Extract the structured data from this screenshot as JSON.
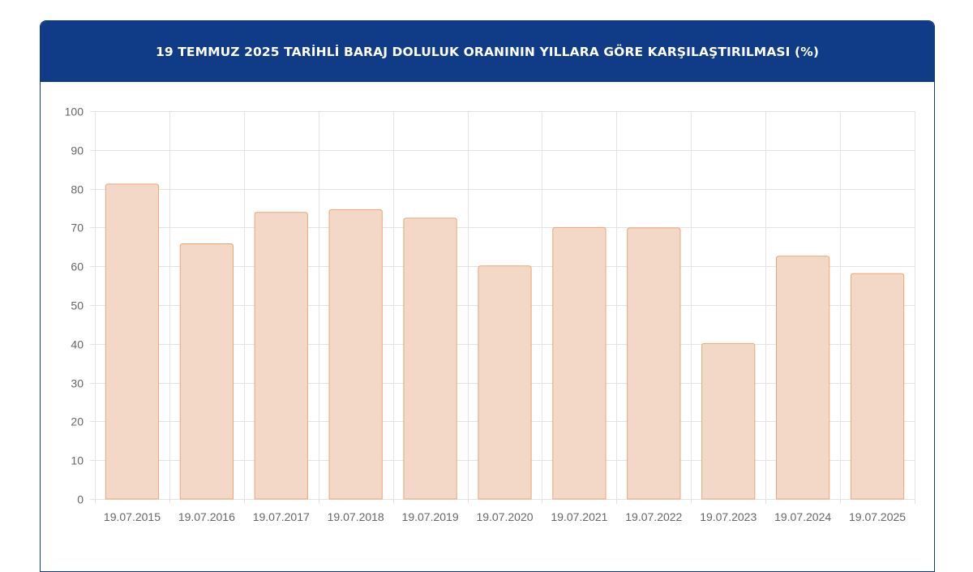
{
  "header": {
    "title": "19 TEMMUZ 2025 TARİHLİ BARAJ DOLULUK ORANININ YILLARA GÖRE KARŞILAŞTIRILMASI (%)"
  },
  "chart_data": {
    "type": "bar",
    "title": "19 TEMMUZ 2025 TARİHLİ BARAJ DOLULUK ORANININ YILLARA GÖRE KARŞILAŞTIRILMASI (%)",
    "categories": [
      "19.07.2015",
      "19.07.2016",
      "19.07.2017",
      "19.07.2018",
      "19.07.2019",
      "19.07.2020",
      "19.07.2021",
      "19.07.2022",
      "19.07.2023",
      "19.07.2024",
      "19.07.2025"
    ],
    "values": [
      81.2,
      65.8,
      73.9,
      74.6,
      72.4,
      60.1,
      70.0,
      69.9,
      40.1,
      62.6,
      58.1
    ],
    "ylim": [
      0,
      100
    ],
    "yticks": [
      0,
      10,
      20,
      30,
      40,
      50,
      60,
      70,
      80,
      90,
      100
    ],
    "xlabel": "",
    "ylabel": "",
    "grid": true,
    "legend": "none",
    "colors": {
      "bar_fill": "#f3d8c7",
      "bar_stroke": "#e6a77c",
      "grid": "#e3e3e3",
      "header_bg": "#0f3b87"
    }
  }
}
